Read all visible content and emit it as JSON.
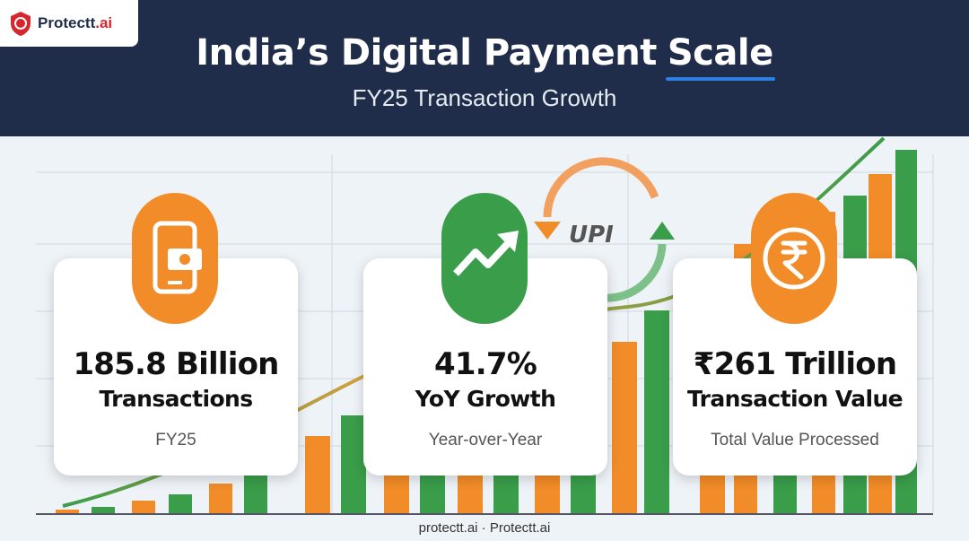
{
  "header": {
    "logo": {
      "name": "Protectt",
      "suffix": ".ai"
    },
    "title_parts": [
      "India’s Digital Payment",
      "Scale"
    ],
    "subtitle": "FY25 Transaction Growth"
  },
  "badge": "UPI",
  "cards": [
    {
      "value": "185.8 Billion",
      "label": "Transactions",
      "caption": "FY25"
    },
    {
      "value": "41.7%",
      "label": "YoY Growth",
      "caption": "Year-over-Year"
    },
    {
      "value": "₹261 Trillion",
      "label": "Transaction Value",
      "caption": "Total Value Processed"
    }
  ],
  "footer": "protectt.ai · Protectt.ai"
}
